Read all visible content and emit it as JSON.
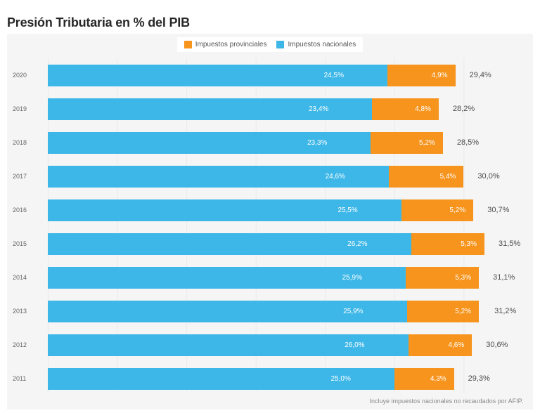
{
  "title": "Presión Tributaria en % del PIB",
  "footnote": "Incluye impuestos nacionales no recaudados por AFIP.",
  "colors": {
    "provincial": "#f6941e",
    "national": "#3db7e8",
    "panel_background": "#f5f5f5",
    "title_text": "#282828",
    "bar_value_text": "#ffffff",
    "total_text": "#4d4d4d"
  },
  "legend": {
    "items": [
      {
        "label": "Impuestos provinciales",
        "color": "#f6941e"
      },
      {
        "label": "Impuestos nacionales",
        "color": "#3db7e8"
      }
    ]
  },
  "chart_data": {
    "type": "bar",
    "orientation": "horizontal",
    "stacked": true,
    "title": "Presión Tributaria en % del PIB",
    "categories": [
      "2020",
      "2019",
      "2018",
      "2017",
      "2016",
      "2015",
      "2014",
      "2013",
      "2012",
      "2011"
    ],
    "series": [
      {
        "name": "Impuestos nacionales",
        "color": "#3db7e8",
        "values": [
          24.5,
          23.4,
          23.3,
          24.6,
          25.5,
          26.2,
          25.9,
          25.9,
          26.0,
          25.0
        ],
        "labels": [
          "24,5%",
          "23,4%",
          "23,3%",
          "24,6%",
          "25,5%",
          "26,2%",
          "25,9%",
          "25,9%",
          "26,0%",
          "25,0%"
        ]
      },
      {
        "name": "Impuestos provinciales",
        "color": "#f6941e",
        "values": [
          4.9,
          4.8,
          5.2,
          5.4,
          5.2,
          5.3,
          5.3,
          5.2,
          4.6,
          4.3
        ],
        "labels": [
          "4,9%",
          "4,8%",
          "5,2%",
          "5,4%",
          "5,2%",
          "5,3%",
          "5,3%",
          "5,2%",
          "4,6%",
          "4,3%"
        ]
      }
    ],
    "totals": [
      29.4,
      28.2,
      28.5,
      30.0,
      30.7,
      31.5,
      31.1,
      31.2,
      30.6,
      29.3
    ],
    "total_labels": [
      "29,4%",
      "28,2%",
      "28,5%",
      "30,0%",
      "30,7%",
      "31,5%",
      "31,1%",
      "31,2%",
      "30,6%",
      "29,3%"
    ],
    "xlim": [
      0,
      35
    ],
    "gridline_step": 5,
    "grid": true,
    "legend_position": "top-center"
  }
}
